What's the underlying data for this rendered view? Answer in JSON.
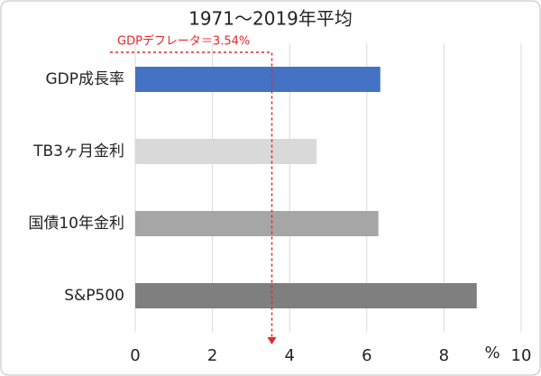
{
  "chart_data": {
    "type": "bar",
    "orientation": "horizontal",
    "title": "1971～2019年平均",
    "categories": [
      "GDP成長率",
      "TB3ヶ月金利",
      "国債10年金利",
      "S&P500"
    ],
    "values": [
      6.35,
      4.7,
      6.3,
      8.85
    ],
    "colors": [
      "#4472c4",
      "#d9d9d9",
      "#a6a6a6",
      "#7f7f7f"
    ],
    "xlim": [
      0,
      10
    ],
    "xticks": [
      0,
      2,
      4,
      6,
      8,
      10
    ],
    "x_unit": "%",
    "grid": true,
    "annotation": {
      "value": 3.54,
      "label": "GDPデフレータ＝3.54%",
      "color": "#e8262b"
    }
  }
}
